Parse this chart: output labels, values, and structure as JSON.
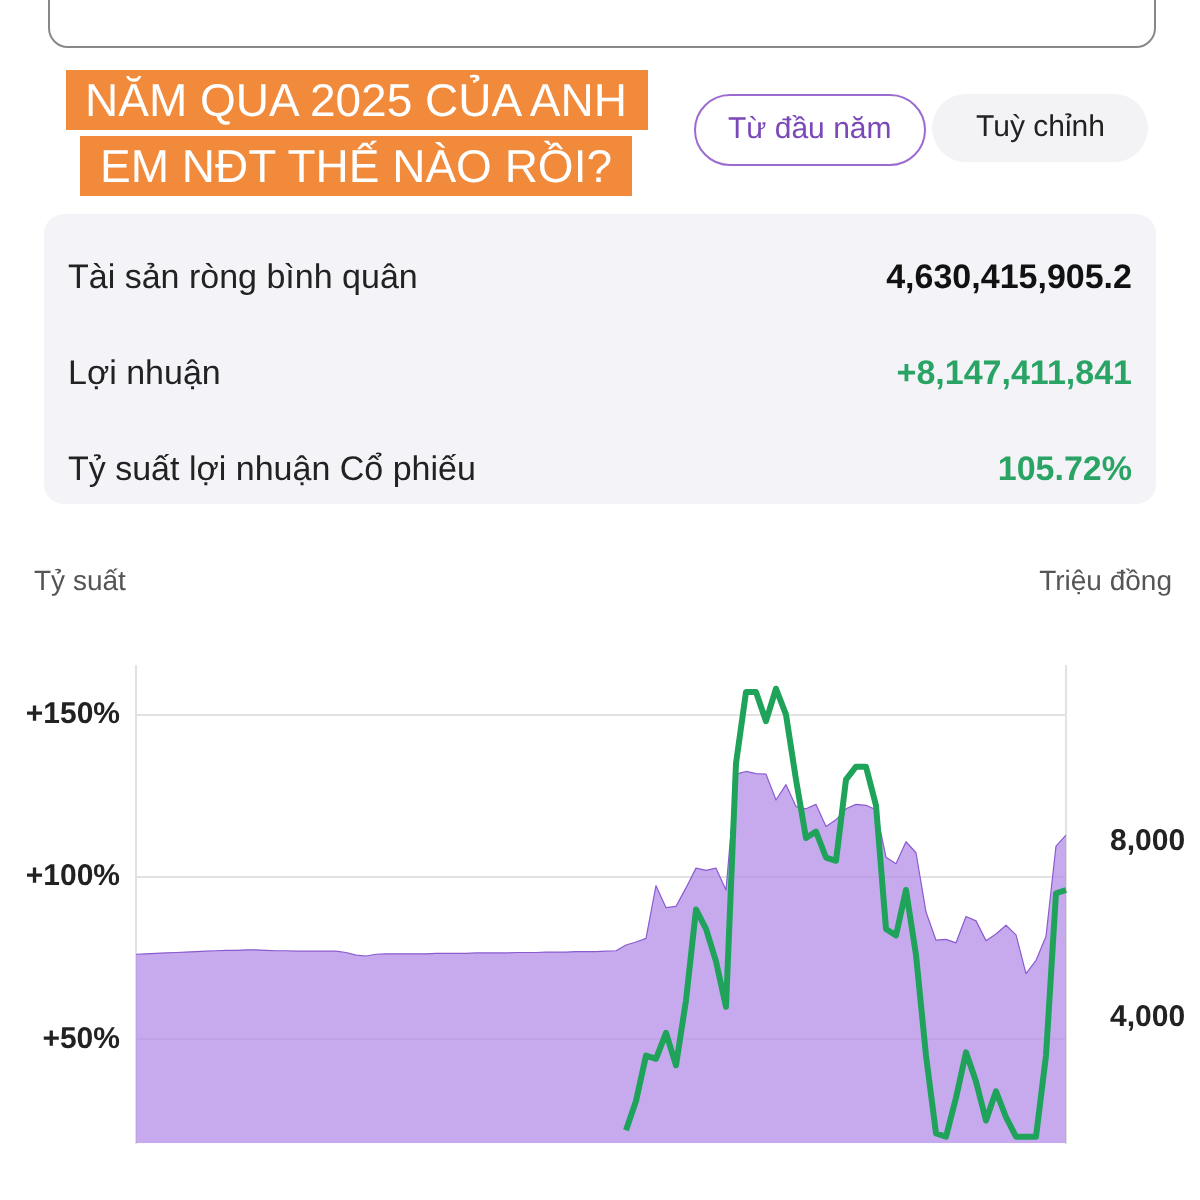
{
  "chart_data": {
    "type": "area",
    "title": "NĂM QUA 2025 CỦA ANH EM NĐT THẾ NÀO RỒI?",
    "ylabel": "Tỷ suất",
    "y2label": "Triệu đồng",
    "annotations": [
      "Từ đầu năm",
      "Tuỳ chỉnh",
      "Tài sản ròng bình quân",
      "4,630,415,905.2",
      "Lợi nhuận",
      "+8,147,411,841",
      "Tỷ suất lợi nhuận Cổ phiếu",
      "105.72%"
    ],
    "categories": [
      null,
      null,
      null,
      null,
      null,
      null,
      null,
      null,
      null,
      null,
      null,
      null,
      null,
      null,
      null,
      null,
      null,
      null,
      null,
      null,
      null,
      null,
      null,
      null,
      null,
      null,
      null,
      null,
      null,
      null,
      null,
      null,
      null,
      null,
      null,
      null,
      null,
      null,
      null,
      null,
      null,
      null,
      null,
      null,
      null,
      null,
      null,
      null,
      null,
      null,
      null,
      null,
      null,
      null,
      null,
      null,
      null,
      null,
      null,
      null,
      null,
      null,
      null,
      null,
      null,
      null,
      null,
      null,
      null,
      null,
      null,
      null,
      null,
      null,
      null,
      null,
      null,
      null,
      null,
      null,
      null,
      null,
      null,
      null,
      null,
      null,
      null,
      null,
      null,
      null,
      null,
      null,
      null,
      null
    ],
    "series": [
      {
        "axis": "y2",
        "color": "#b48ee8",
        "values": [
          5440,
          5450,
          5460,
          5470,
          5480,
          5490,
          5500,
          5510,
          5520,
          5530,
          5530,
          5540,
          5540,
          5530,
          5520,
          5520,
          5510,
          5510,
          5510,
          5510,
          5510,
          5480,
          5420,
          5400,
          5440,
          5450,
          5450,
          5450,
          5450,
          5450,
          5460,
          5460,
          5460,
          5460,
          5470,
          5470,
          5470,
          5470,
          5480,
          5480,
          5480,
          5490,
          5490,
          5490,
          5500,
          5500,
          5500,
          5510,
          5520,
          5650,
          5720,
          5800,
          7000,
          6500,
          6530,
          6950,
          7400,
          7350,
          7400,
          6900,
          9540,
          9600,
          9550,
          9540,
          8950,
          9300,
          8800,
          8750,
          8850,
          8350,
          8500,
          8750,
          8850,
          8830,
          8730,
          7650,
          7500,
          8000,
          7750,
          6400,
          5760,
          5780,
          5700,
          6300,
          6200,
          5750,
          5900,
          6100,
          5880,
          5000,
          5300,
          5850,
          7900,
          8150
        ]
      },
      {
        "type": "line",
        "color": "#1fa35a",
        "values": [
          null,
          null,
          null,
          null,
          null,
          null,
          null,
          null,
          null,
          null,
          null,
          null,
          null,
          null,
          null,
          null,
          null,
          null,
          null,
          null,
          null,
          null,
          null,
          null,
          null,
          null,
          null,
          null,
          null,
          null,
          null,
          null,
          null,
          null,
          null,
          null,
          null,
          null,
          null,
          null,
          null,
          null,
          null,
          null,
          null,
          null,
          null,
          null,
          null,
          22,
          31,
          45,
          44,
          52,
          42,
          62,
          90,
          84,
          74,
          60,
          135,
          157,
          157,
          148,
          158,
          150,
          130,
          112,
          114,
          106,
          105,
          130,
          134,
          134,
          122,
          84,
          82,
          96,
          76,
          45,
          21,
          20,
          32,
          46,
          37,
          25,
          34,
          26,
          20,
          20,
          20,
          45,
          95,
          96
        ]
      }
    ],
    "ylim": [
      18,
      165
    ],
    "yticks": [
      {
        "value": 50,
        "label": "+50%"
      },
      {
        "value": 100,
        "label": "+100%"
      },
      {
        "value": 150,
        "label": "+150%"
      }
    ],
    "y2lim": [
      1140,
      12000
    ],
    "y2ticks": [
      {
        "value": 4000,
        "label": "4,000"
      },
      {
        "value": 8000,
        "label": "8,000"
      }
    ],
    "grid": "y",
    "legend": false,
    "marker": "none",
    "line_style": "solid"
  }
}
